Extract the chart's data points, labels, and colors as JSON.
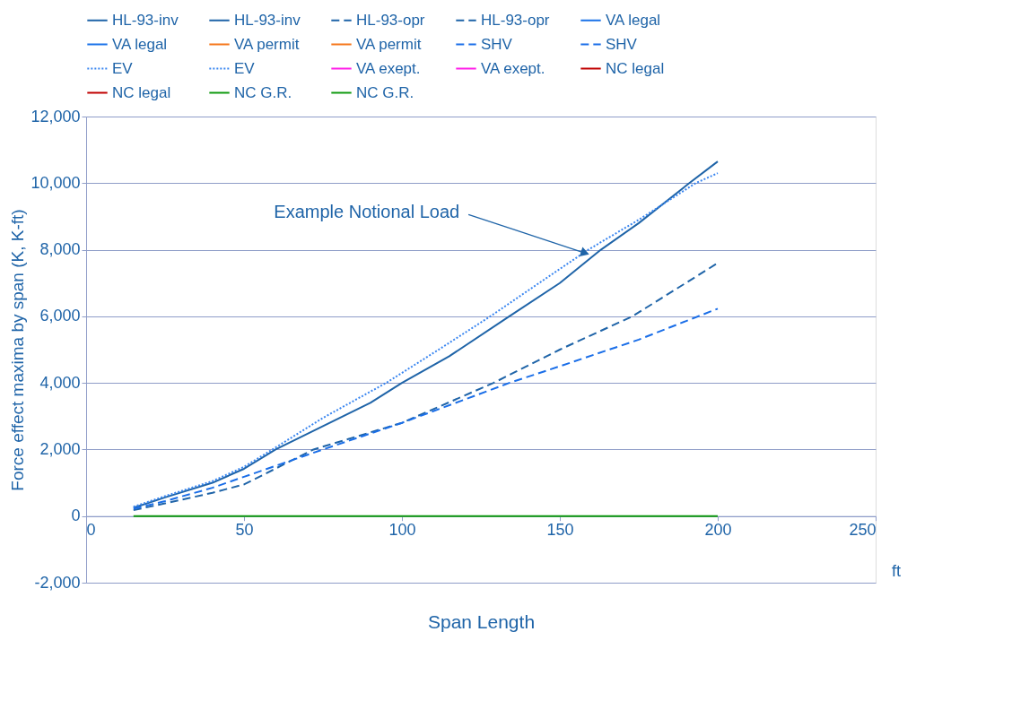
{
  "chart_data": {
    "type": "line",
    "xlabel": "Span Length",
    "ylabel": "Force effect maxima by span (K, K-ft)",
    "xlim": [
      0,
      250
    ],
    "xticks": [
      0,
      50,
      100,
      150,
      200,
      250
    ],
    "ylim": [
      -2000,
      12000
    ],
    "yticks": [
      {
        "value": -2000,
        "label": "-2,000"
      },
      0,
      {
        "value": 2000,
        "label": "2,000"
      },
      {
        "value": 4000,
        "label": "4,000"
      },
      {
        "value": 6000,
        "label": "6,000"
      },
      {
        "value": 8000,
        "label": "8,000"
      },
      {
        "value": 10000,
        "label": "10,000"
      },
      {
        "value": 12000,
        "label": "12,000"
      }
    ],
    "grid": "y",
    "legend": "top",
    "annotations": [
      {
        "text": "Example Notional Load",
        "x": 158,
        "y": 7900
      },
      "ft"
    ],
    "series": [
      {
        "name": "HL-93-inv",
        "color": "#1f64a8",
        "line_style": "solid",
        "x": [
          15,
          25,
          40,
          50,
          60,
          75,
          90,
          100,
          115,
          134,
          150,
          163,
          175,
          191,
          200
        ],
        "values": [
          250,
          560,
          1000,
          1420,
          2000,
          2700,
          3400,
          4000,
          4800,
          6000,
          7000,
          8000,
          8800,
          10000,
          10650
        ]
      },
      {
        "name": "HL-93-inv",
        "color": "#1f64a8",
        "line_style": "solid"
      },
      {
        "name": "HL-93-opr",
        "color": "#1f64a8",
        "line_style": "dashed",
        "x": [
          15,
          25,
          40,
          50,
          72,
          100,
          129,
          150,
          173,
          200
        ],
        "values": [
          180,
          380,
          700,
          950,
          2000,
          2800,
          4000,
          5000,
          6000,
          7600
        ]
      },
      {
        "name": "HL-93-opr",
        "color": "#1f64a8",
        "line_style": "dashed"
      },
      {
        "name": "VA legal",
        "color": "#1a72e8",
        "line_style": "solid"
      },
      {
        "name": "VA legal",
        "color": "#1a72e8",
        "line_style": "solid"
      },
      {
        "name": "VA permit",
        "color": "#f5761a",
        "line_style": "solid"
      },
      {
        "name": "VA permit",
        "color": "#f5761a",
        "line_style": "solid"
      },
      {
        "name": "SHV",
        "color": "#1a6ee8",
        "line_style": "dashed",
        "x": [
          15,
          25,
          40,
          50,
          75,
          100,
          134,
          150,
          175,
          200
        ],
        "values": [
          220,
          450,
          850,
          1180,
          2000,
          2800,
          4000,
          4500,
          5300,
          6230
        ]
      },
      {
        "name": "SHV",
        "color": "#1a6ee8",
        "line_style": "dashed"
      },
      {
        "name": "EV",
        "color": "#3a86f0",
        "line_style": "dotted",
        "x": [
          15,
          25,
          40,
          50,
          59,
          75,
          95,
          110,
          128,
          145,
          159,
          175,
          193,
          200
        ],
        "values": [
          280,
          600,
          1050,
          1480,
          2000,
          2950,
          4000,
          4900,
          6000,
          7100,
          8000,
          8900,
          10000,
          10300
        ]
      },
      {
        "name": "EV",
        "color": "#3a86f0",
        "line_style": "dotted"
      },
      {
        "name": "VA exept.",
        "color": "#ff1ee8",
        "line_style": "solid"
      },
      {
        "name": "VA exept.",
        "color": "#ff1ee8",
        "line_style": "solid"
      },
      {
        "name": "NC legal",
        "color": "#c00000",
        "line_style": "solid"
      },
      {
        "name": "NC legal",
        "color": "#c00000",
        "line_style": "solid"
      },
      {
        "name": "NC G.R.",
        "color": "#109a10",
        "line_style": "solid",
        "x": [
          15,
          200
        ],
        "values": [
          0,
          0
        ]
      },
      {
        "name": "NC G.R.",
        "color": "#109a10",
        "line_style": "solid"
      }
    ]
  }
}
